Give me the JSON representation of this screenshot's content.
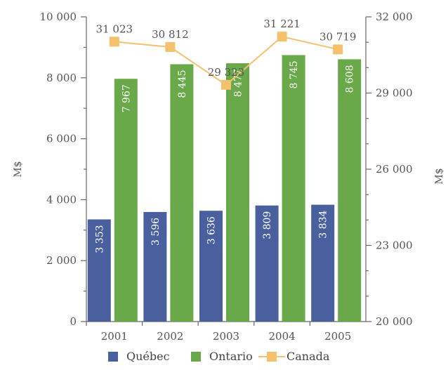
{
  "chart_data": {
    "type": "bar",
    "categories": [
      "2001",
      "2002",
      "2003",
      "2004",
      "2005"
    ],
    "bar_labels": {
      "Québec": [
        "3 353",
        "3 596",
        "3 636",
        "3 809",
        "3 834"
      ],
      "Ontario": [
        "7 967",
        "8 445",
        "8 477",
        "8 745",
        "8 608"
      ]
    },
    "series": [
      {
        "name": "Québec",
        "type": "bar",
        "axis": "left",
        "color": "#4a5f9e",
        "values": [
          3353,
          3596,
          3636,
          3809,
          3834
        ]
      },
      {
        "name": "Ontario",
        "type": "bar",
        "axis": "left",
        "color": "#6aa94a",
        "values": [
          7967,
          8445,
          8477,
          8745,
          8608
        ]
      },
      {
        "name": "Canada",
        "type": "line",
        "axis": "right",
        "color": "#f5c16c",
        "values": [
          31023,
          30812,
          29323,
          31221,
          30719
        ],
        "labels": [
          "31 023",
          "30 812",
          "29 323",
          "31 221",
          "30 719"
        ]
      }
    ],
    "ylabel": "M$",
    "y2label": "M$",
    "ylim": [
      0,
      10000
    ],
    "y2lim": [
      20000,
      32000
    ],
    "yticks": [
      "0",
      "2 000",
      "4 000",
      "6 000",
      "8 000",
      "10 000"
    ],
    "y2ticks": [
      "20 000",
      "23 000",
      "26 000",
      "29 000",
      "32 000"
    ],
    "legend": [
      "Québec",
      "Ontario",
      "Canada"
    ],
    "legend_position": "bottom",
    "grid": false
  }
}
